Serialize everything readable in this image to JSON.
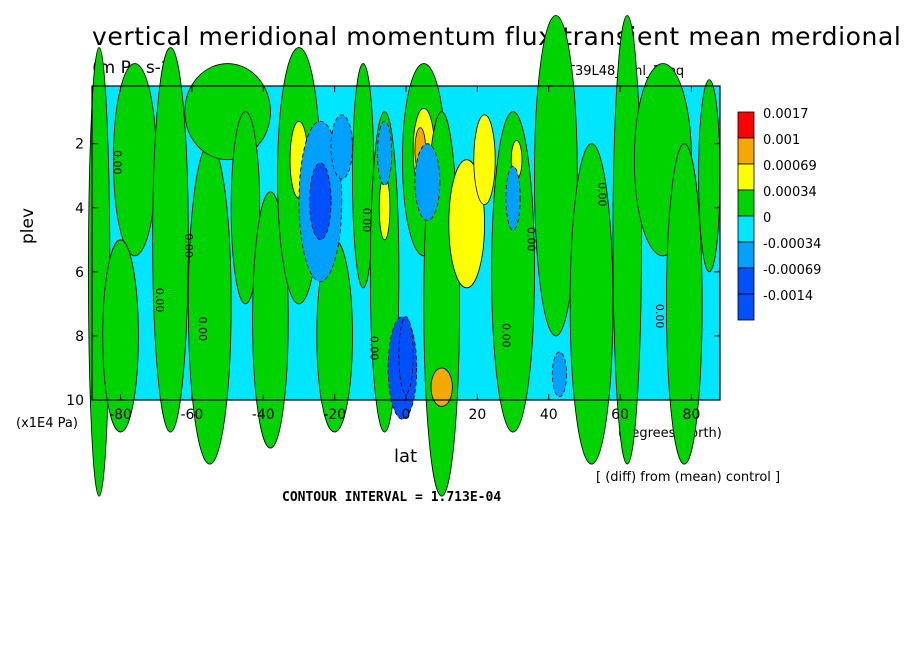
{
  "chart_data": {
    "type": "heatmap",
    "title": "vertical meridional momentum flux transient mean merdional",
    "units": "(m Pa s-2)",
    "run_id": "T39L48_eml_1keq",
    "xlabel": "lat",
    "x_units": "(degrees_north)",
    "ylabel": "plev",
    "y_units": "(x1E4 Pa)",
    "xlim": [
      -88,
      88
    ],
    "ylim": [
      10,
      0.2
    ],
    "x_ticks": [
      "-80",
      "-60",
      "-40",
      "-20",
      "0",
      "20",
      "40",
      "60",
      "80"
    ],
    "y_ticks": [
      "2",
      "4",
      "6",
      "8",
      "10"
    ],
    "note": "[ (diff) from (mean) control ]",
    "contour_interval": "CONTOUR INTERVAL = 1.713E-04",
    "contour_labels": [
      "0.00",
      "0.00",
      "0.00",
      "0.00",
      "0.00",
      "0.00",
      "0.00",
      "0.00",
      "0.00",
      "0.00"
    ],
    "legend": [
      {
        "label": "0.0017",
        "color": "#ff0000"
      },
      {
        "label": "0.001",
        "color": "#f5a800"
      },
      {
        "label": "0.00069",
        "color": "#ffff00"
      },
      {
        "label": "0.00034",
        "color": "#00d400"
      },
      {
        "label": "0",
        "color": "#00e6ff"
      },
      {
        "label": "-0.00034",
        "color": "#00a0ff"
      },
      {
        "label": "-0.00069",
        "color": "#0050ff"
      },
      {
        "label": "-0.0014",
        "color": "#0050ff"
      }
    ],
    "background_color": "#00e6ff",
    "positive_regions": [
      {
        "lat": -86,
        "plev": 6,
        "w": 3,
        "h": 7,
        "level": 0
      },
      {
        "lat": -76,
        "plev": 2.5,
        "w": 6,
        "h": 3,
        "level": 0
      },
      {
        "lat": -80,
        "plev": 8,
        "w": 5,
        "h": 3,
        "level": 0
      },
      {
        "lat": -66,
        "plev": 5,
        "w": 5,
        "h": 6,
        "level": 0
      },
      {
        "lat": -55,
        "plev": 7,
        "w": 6,
        "h": 5,
        "level": 0
      },
      {
        "lat": -50,
        "plev": 1,
        "w": 12,
        "h": 1.5,
        "level": 0
      },
      {
        "lat": -45,
        "plev": 4,
        "w": 4,
        "h": 3,
        "level": 0
      },
      {
        "lat": -38,
        "plev": 7.5,
        "w": 5,
        "h": 4,
        "level": 0
      },
      {
        "lat": -30,
        "plev": 3,
        "w": 6,
        "h": 4,
        "level": 0
      },
      {
        "lat": -30,
        "plev": 2.5,
        "w": 2.5,
        "h": 1.2,
        "level": 1
      },
      {
        "lat": -20,
        "plev": 8,
        "w": 5,
        "h": 3,
        "level": 0
      },
      {
        "lat": -12,
        "plev": 3,
        "w": 3,
        "h": 3.5,
        "level": 0
      },
      {
        "lat": -6,
        "plev": 6,
        "w": 4,
        "h": 5,
        "level": 0
      },
      {
        "lat": -6,
        "plev": 4,
        "w": 1.5,
        "h": 1,
        "level": 1
      },
      {
        "lat": 5,
        "plev": 2.5,
        "w": 6,
        "h": 3,
        "level": 0
      },
      {
        "lat": 5,
        "plev": 2.2,
        "w": 3,
        "h": 1.3,
        "level": 1
      },
      {
        "lat": 4,
        "plev": 2.2,
        "w": 1.5,
        "h": 0.7,
        "level": 2
      },
      {
        "lat": 10,
        "plev": 7,
        "w": 5,
        "h": 6,
        "level": 0
      },
      {
        "lat": 17,
        "plev": 4.5,
        "w": 5,
        "h": 2,
        "level": 1
      },
      {
        "lat": 22,
        "plev": 2.5,
        "w": 3,
        "h": 1.4,
        "level": 1
      },
      {
        "lat": 30,
        "plev": 6,
        "w": 6,
        "h": 5,
        "level": 0
      },
      {
        "lat": 31,
        "plev": 2.5,
        "w": 1.5,
        "h": 0.6,
        "level": 1
      },
      {
        "lat": 42,
        "plev": 3,
        "w": 6,
        "h": 5,
        "level": 0
      },
      {
        "lat": 52,
        "plev": 7,
        "w": 6,
        "h": 5,
        "level": 0
      },
      {
        "lat": 62,
        "plev": 5,
        "w": 4,
        "h": 7,
        "level": 0
      },
      {
        "lat": 72,
        "plev": 2.5,
        "w": 8,
        "h": 3,
        "level": 0
      },
      {
        "lat": 78,
        "plev": 7,
        "w": 5,
        "h": 5,
        "level": 0
      },
      {
        "lat": 85,
        "plev": 3,
        "w": 3,
        "h": 3,
        "level": 0
      },
      {
        "lat": 10,
        "plev": 9.6,
        "w": 3,
        "h": 0.6,
        "level": 2
      }
    ],
    "negative_regions": [
      {
        "lat": -24,
        "plev": 3.8,
        "w": 6,
        "h": 2.5,
        "level": 1
      },
      {
        "lat": -24,
        "plev": 3.8,
        "w": 3,
        "h": 1.2,
        "level": 2
      },
      {
        "lat": -18,
        "plev": 2.1,
        "w": 3,
        "h": 1,
        "level": 1
      },
      {
        "lat": -6,
        "plev": 2.3,
        "w": 2,
        "h": 1,
        "level": 1
      },
      {
        "lat": 6,
        "plev": 3.2,
        "w": 3.5,
        "h": 1.2,
        "level": 1
      },
      {
        "lat": -1,
        "plev": 9,
        "w": 4,
        "h": 1.6,
        "level": 2
      },
      {
        "lat": 0,
        "plev": 8.6,
        "w": 2,
        "h": 1.2,
        "level": 3
      },
      {
        "lat": 30,
        "plev": 3.7,
        "w": 2,
        "h": 1,
        "level": 1
      },
      {
        "lat": 43,
        "plev": 9.2,
        "w": 2,
        "h": 0.7,
        "level": 1
      }
    ]
  }
}
